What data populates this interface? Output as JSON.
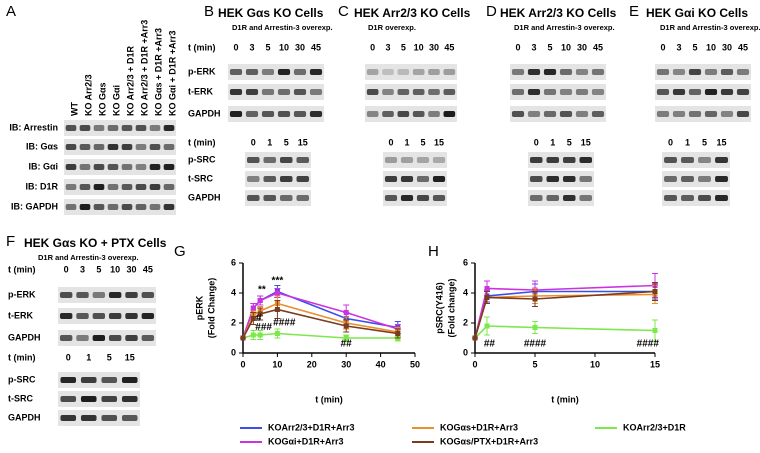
{
  "panel_a": {
    "label": "A",
    "columns": [
      "WT",
      "KO Arr2/3",
      "KO Gαs",
      "KO Gαi",
      "KO Arr2/3 + D1R",
      "KO Arr2/3 + D1R +Arr3",
      "KO Gαs + D1R +Arr3",
      "KO Gαi + D1R +Arr3"
    ],
    "rows": [
      "IB: Arrestin",
      "IB: Gαs",
      "IB: Gαi",
      "IB: D1R",
      "IB: GAPDH"
    ]
  },
  "blot_panels": [
    {
      "label": "B",
      "title": "HEK Gαs KO Cells",
      "subtitle": "D1R and Arrestin-3 overexp.",
      "t_label": "t (min)",
      "erk_times": [
        "0",
        "3",
        "5",
        "10",
        "30",
        "45"
      ],
      "erk_rows": [
        "p-ERK",
        "t-ERK",
        "GAPDH"
      ],
      "src_times": [
        "0",
        "1",
        "5",
        "15"
      ],
      "src_rows": [
        "p-SRC",
        "t-SRC",
        "GAPDH"
      ]
    },
    {
      "label": "C",
      "title": "HEK Arr2/3 KO Cells",
      "subtitle": "D1R overexp.",
      "erk_times": [
        "0",
        "3",
        "5",
        "10",
        "30",
        "45"
      ],
      "src_times": [
        "0",
        "1",
        "5",
        "15"
      ]
    },
    {
      "label": "D",
      "title": "HEK Arr2/3 KO Cells",
      "subtitle": "D1R and Arrestin-3 overexp.",
      "erk_times": [
        "0",
        "3",
        "5",
        "10",
        "30",
        "45"
      ],
      "src_times": [
        "0",
        "1",
        "5",
        "15"
      ]
    },
    {
      "label": "E",
      "title": "HEK Gαi KO Cells",
      "subtitle": "D1R and Arrestin-3 overexp.",
      "erk_times": [
        "0",
        "3",
        "5",
        "10",
        "30",
        "45"
      ],
      "src_times": [
        "0",
        "1",
        "5",
        "15"
      ]
    },
    {
      "label": "F",
      "title": "HEK Gαs KO + PTX Cells",
      "subtitle": "D1R and Arrestin-3 overexp.",
      "t_label": "t (min)",
      "erk_times": [
        "0",
        "3",
        "5",
        "10",
        "30",
        "45"
      ],
      "erk_rows": [
        "p-ERK",
        "t-ERK",
        "GAPDH"
      ],
      "src_times": [
        "0",
        "1",
        "5",
        "15"
      ],
      "src_rows": [
        "p-SRC",
        "t-SRC",
        "GAPDH"
      ]
    }
  ],
  "chart_data": [
    {
      "type": "line",
      "label": "G",
      "ylabel": [
        "pERK",
        "(Fold Change)"
      ],
      "xlabel": "t (min)",
      "x": [
        0,
        3,
        5,
        10,
        30,
        45
      ],
      "xlim": [
        0,
        50
      ],
      "xticks": [
        0,
        10,
        20,
        30,
        40,
        50
      ],
      "ylim": [
        0,
        6
      ],
      "yticks": [
        0,
        2,
        4,
        6
      ],
      "series": [
        {
          "name": "KOArr2/3+D1R+Arr3",
          "color": "#3b4ee8",
          "values": [
            1,
            3.0,
            3.5,
            4.1,
            2.3,
            1.7
          ],
          "errors": [
            0,
            0.3,
            0.3,
            0.4,
            0.4,
            0.4
          ]
        },
        {
          "name": "KOGαi+D1R+Arr3",
          "color": "#cc33e0",
          "values": [
            1,
            3.0,
            3.5,
            4.0,
            2.7,
            1.6
          ],
          "errors": [
            0,
            0.3,
            0.3,
            0.3,
            0.5,
            0.3
          ]
        },
        {
          "name": "KOGαs+D1R+Arr3",
          "color": "#e8902e",
          "values": [
            1,
            2.5,
            2.8,
            3.3,
            2.0,
            1.4
          ],
          "errors": [
            0,
            0.3,
            0.3,
            0.5,
            0.4,
            0.3
          ]
        },
        {
          "name": "KOArr2/3+D1R",
          "color": "#7de84a",
          "values": [
            1,
            1.2,
            1.2,
            1.3,
            1.0,
            1.0
          ],
          "errors": [
            0,
            0.3,
            0.3,
            0.3,
            0.2,
            0.2
          ]
        },
        {
          "name": "KOGαs/PTX+D1R+Arr3",
          "color": "#7a3b1e",
          "values": [
            1,
            2.3,
            2.6,
            2.9,
            1.8,
            1.3
          ],
          "errors": [
            0,
            0.4,
            0.4,
            0.6,
            0.4,
            0.3
          ]
        }
      ],
      "annotations": [
        {
          "text": "**",
          "x": 5.5,
          "y": 4.2
        },
        {
          "text": "***",
          "x": 10,
          "y": 4.8
        },
        {
          "text": "#",
          "x": 4.5,
          "y": 2.3
        },
        {
          "text": "###",
          "x": 6,
          "y": 1.7
        },
        {
          "text": "####",
          "x": 12,
          "y": 2.0
        },
        {
          "text": "##",
          "x": 30,
          "y": 0.6
        }
      ]
    },
    {
      "type": "line",
      "label": "H",
      "ylabel": [
        "pSRC(Y416)",
        "(Fold change)"
      ],
      "xlabel": "t (min)",
      "x": [
        0,
        1,
        5,
        15
      ],
      "xlim": [
        0,
        15
      ],
      "xticks": [
        0,
        5,
        10,
        15
      ],
      "ylim": [
        0,
        6
      ],
      "yticks": [
        0,
        2,
        4,
        6
      ],
      "series": [
        {
          "color": "#3b4ee8",
          "values": [
            1,
            3.8,
            4.1,
            4.1
          ],
          "errors": [
            0,
            0.4,
            0.5,
            0.5
          ]
        },
        {
          "color": "#cc33e0",
          "values": [
            1,
            4.3,
            4.2,
            4.5
          ],
          "errors": [
            0,
            0.5,
            0.6,
            0.8
          ]
        },
        {
          "color": "#e8902e",
          "values": [
            1,
            3.7,
            3.8,
            3.9
          ],
          "errors": [
            0,
            0.4,
            0.5,
            0.6
          ]
        },
        {
          "color": "#7de84a",
          "values": [
            1,
            1.8,
            1.7,
            1.5
          ],
          "errors": [
            0,
            0.6,
            0.4,
            0.7
          ]
        },
        {
          "color": "#7a3b1e",
          "values": [
            1,
            3.7,
            3.6,
            4.1
          ],
          "errors": [
            0,
            0.4,
            0.5,
            0.6
          ]
        }
      ],
      "annotations": [
        {
          "text": "##",
          "x": 1.2,
          "y": 0.6
        },
        {
          "text": "####",
          "x": 5,
          "y": 0.6
        },
        {
          "text": "####",
          "x": 14.4,
          "y": 0.6
        }
      ]
    }
  ]
}
